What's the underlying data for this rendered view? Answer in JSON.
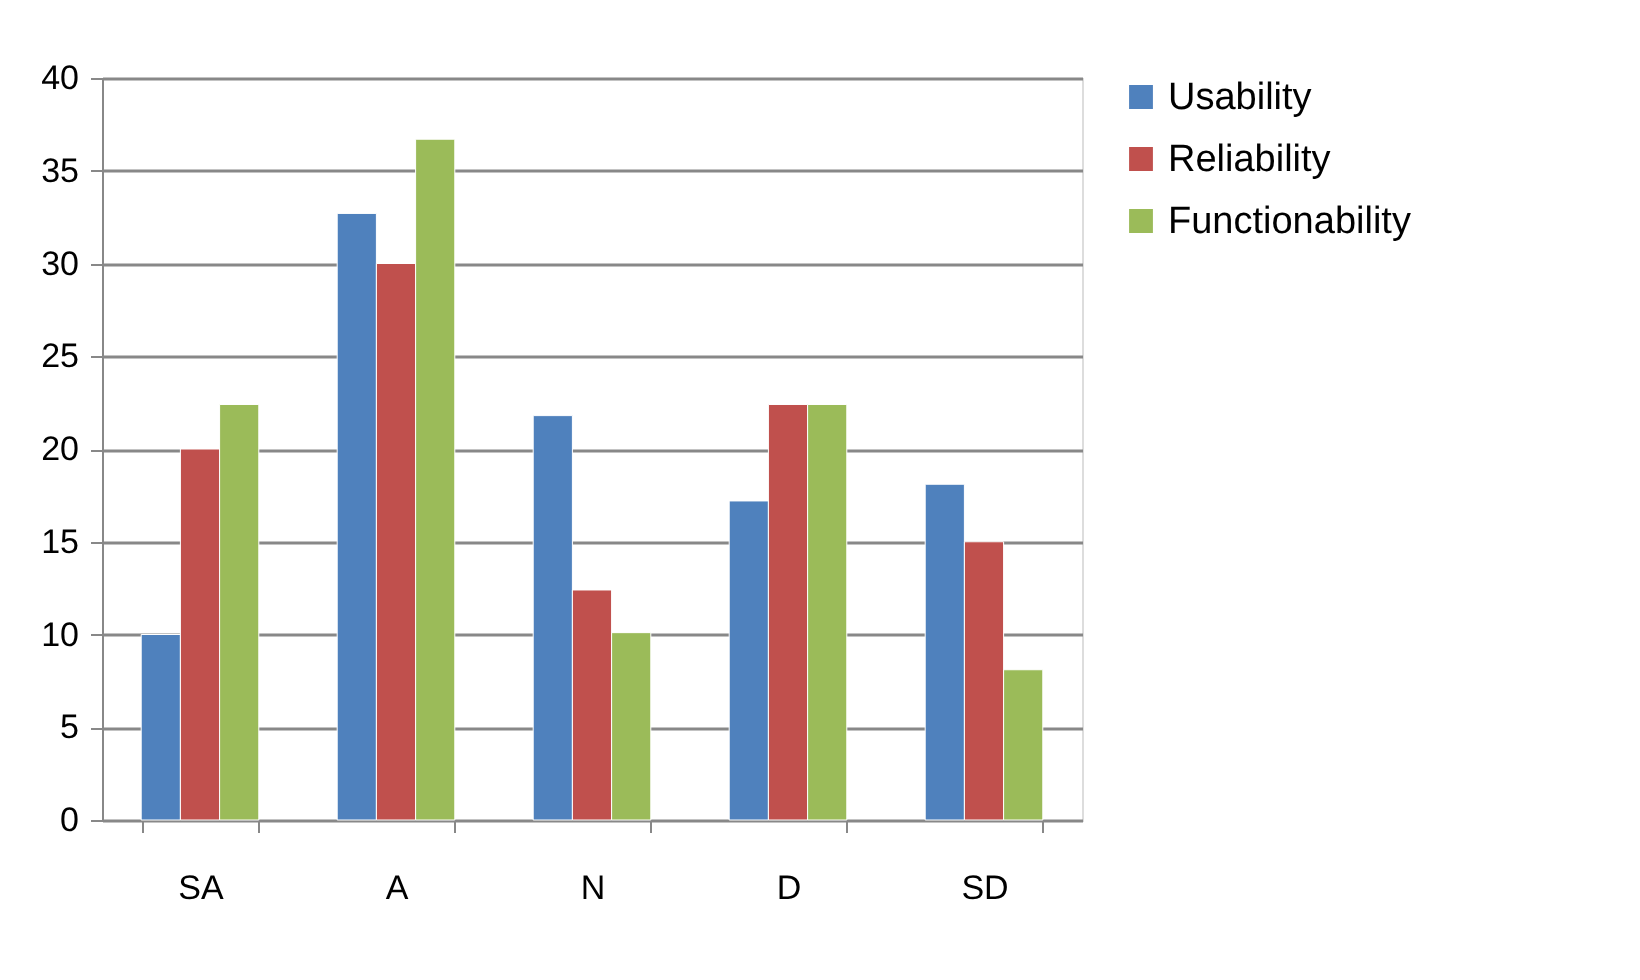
{
  "chart_data": {
    "type": "bar",
    "categories": [
      "SA",
      "A",
      "N",
      "D",
      "SD"
    ],
    "series": [
      {
        "name": "Usability",
        "color": "#4f81bd",
        "values": [
          10,
          32.7,
          21.8,
          17.2,
          18.1
        ]
      },
      {
        "name": "Reliability",
        "color": "#c0504d",
        "values": [
          20,
          30,
          12.4,
          22.4,
          15
        ]
      },
      {
        "name": "Functionability",
        "color": "#9bbb59",
        "values": [
          22.4,
          36.7,
          10.1,
          22.4,
          8.1
        ]
      }
    ],
    "ylim": [
      0,
      40
    ],
    "yticks": [
      0,
      5,
      10,
      15,
      20,
      25,
      30,
      35,
      40
    ],
    "grid": "y",
    "legend": "right"
  }
}
